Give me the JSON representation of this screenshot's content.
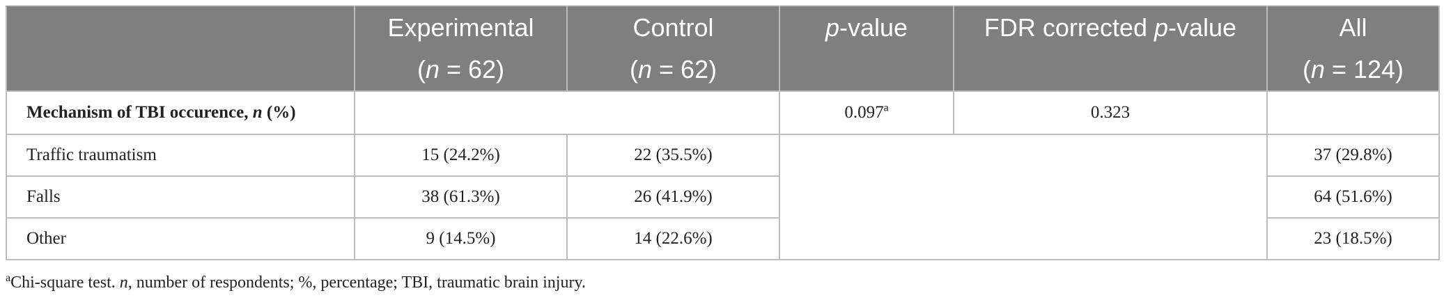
{
  "table": {
    "headers": [
      {
        "line1": "",
        "line2": ""
      },
      {
        "line1": "Experimental",
        "line2_pre": "(",
        "line2_n": "n",
        "line2_post": " = 62)"
      },
      {
        "line1": "Control",
        "line2_pre": "(",
        "line2_n": "n",
        "line2_post": " = 62)"
      },
      {
        "p": "p",
        "rest": "-value"
      },
      {
        "pre": "FDR corrected ",
        "p": "p",
        "rest": "-value"
      },
      {
        "line1": "All",
        "line2_pre": "(",
        "line2_n": "n",
        "line2_post": " = 124)"
      }
    ],
    "section": {
      "label_pre": "Mechanism of TBI occurence, ",
      "label_n": "n",
      "label_post": " (%)",
      "p_value": "0.097",
      "p_value_sup": "a",
      "fdr_value": "0.323"
    },
    "rows": [
      {
        "label": "Traffic traumatism",
        "experimental": "15 (24.2%)",
        "control": "22 (35.5%)",
        "all": "37 (29.8%)"
      },
      {
        "label": "Falls",
        "experimental": "38 (61.3%)",
        "control": "26 (41.9%)",
        "all": "64 (51.6%)"
      },
      {
        "label": "Other",
        "experimental": "9 (14.5%)",
        "control": "14 (22.6%)",
        "all": "23 (18.5%)"
      }
    ]
  },
  "footnote": {
    "sup": "a",
    "text_pre": "Chi-square test. ",
    "n": "n",
    "text_post": ", number of respondents; %, percentage; TBI, traumatic brain injury."
  }
}
